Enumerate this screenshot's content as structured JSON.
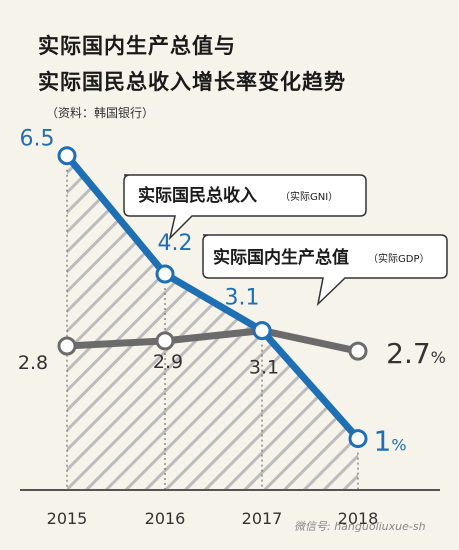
{
  "title_line1": "实际国内生产总值与",
  "title_line2": "实际国民总收入增长率变化趋势",
  "source": "（资料：韩国银行）",
  "watermark": "微信号: hanguoliuxue-sh",
  "colors": {
    "gni": "#1f6fb5",
    "gdp": "#6b6b6b",
    "hatch": "#bdbdbd",
    "background": "#f6f3ea"
  },
  "chart_data": {
    "type": "line",
    "categories": [
      "2015",
      "2016",
      "2017",
      "2018"
    ],
    "series": [
      {
        "name": "实际国民总收入",
        "note": "（实际GNI）",
        "values": [
          6.5,
          4.2,
          3.1,
          1.0
        ],
        "labels": [
          "6.5",
          "4.2",
          "3.1",
          "1"
        ],
        "last_suffix": "%"
      },
      {
        "name": "实际国内生产总值",
        "note": "（实际GDP）",
        "values": [
          2.8,
          2.9,
          3.1,
          2.7
        ],
        "labels": [
          "2.8",
          "2.9",
          "3.1",
          "2.7"
        ],
        "last_suffix": "%"
      }
    ],
    "ylim": [
      0,
      7
    ],
    "grid": "vertical dashed",
    "legend": "callouts"
  }
}
